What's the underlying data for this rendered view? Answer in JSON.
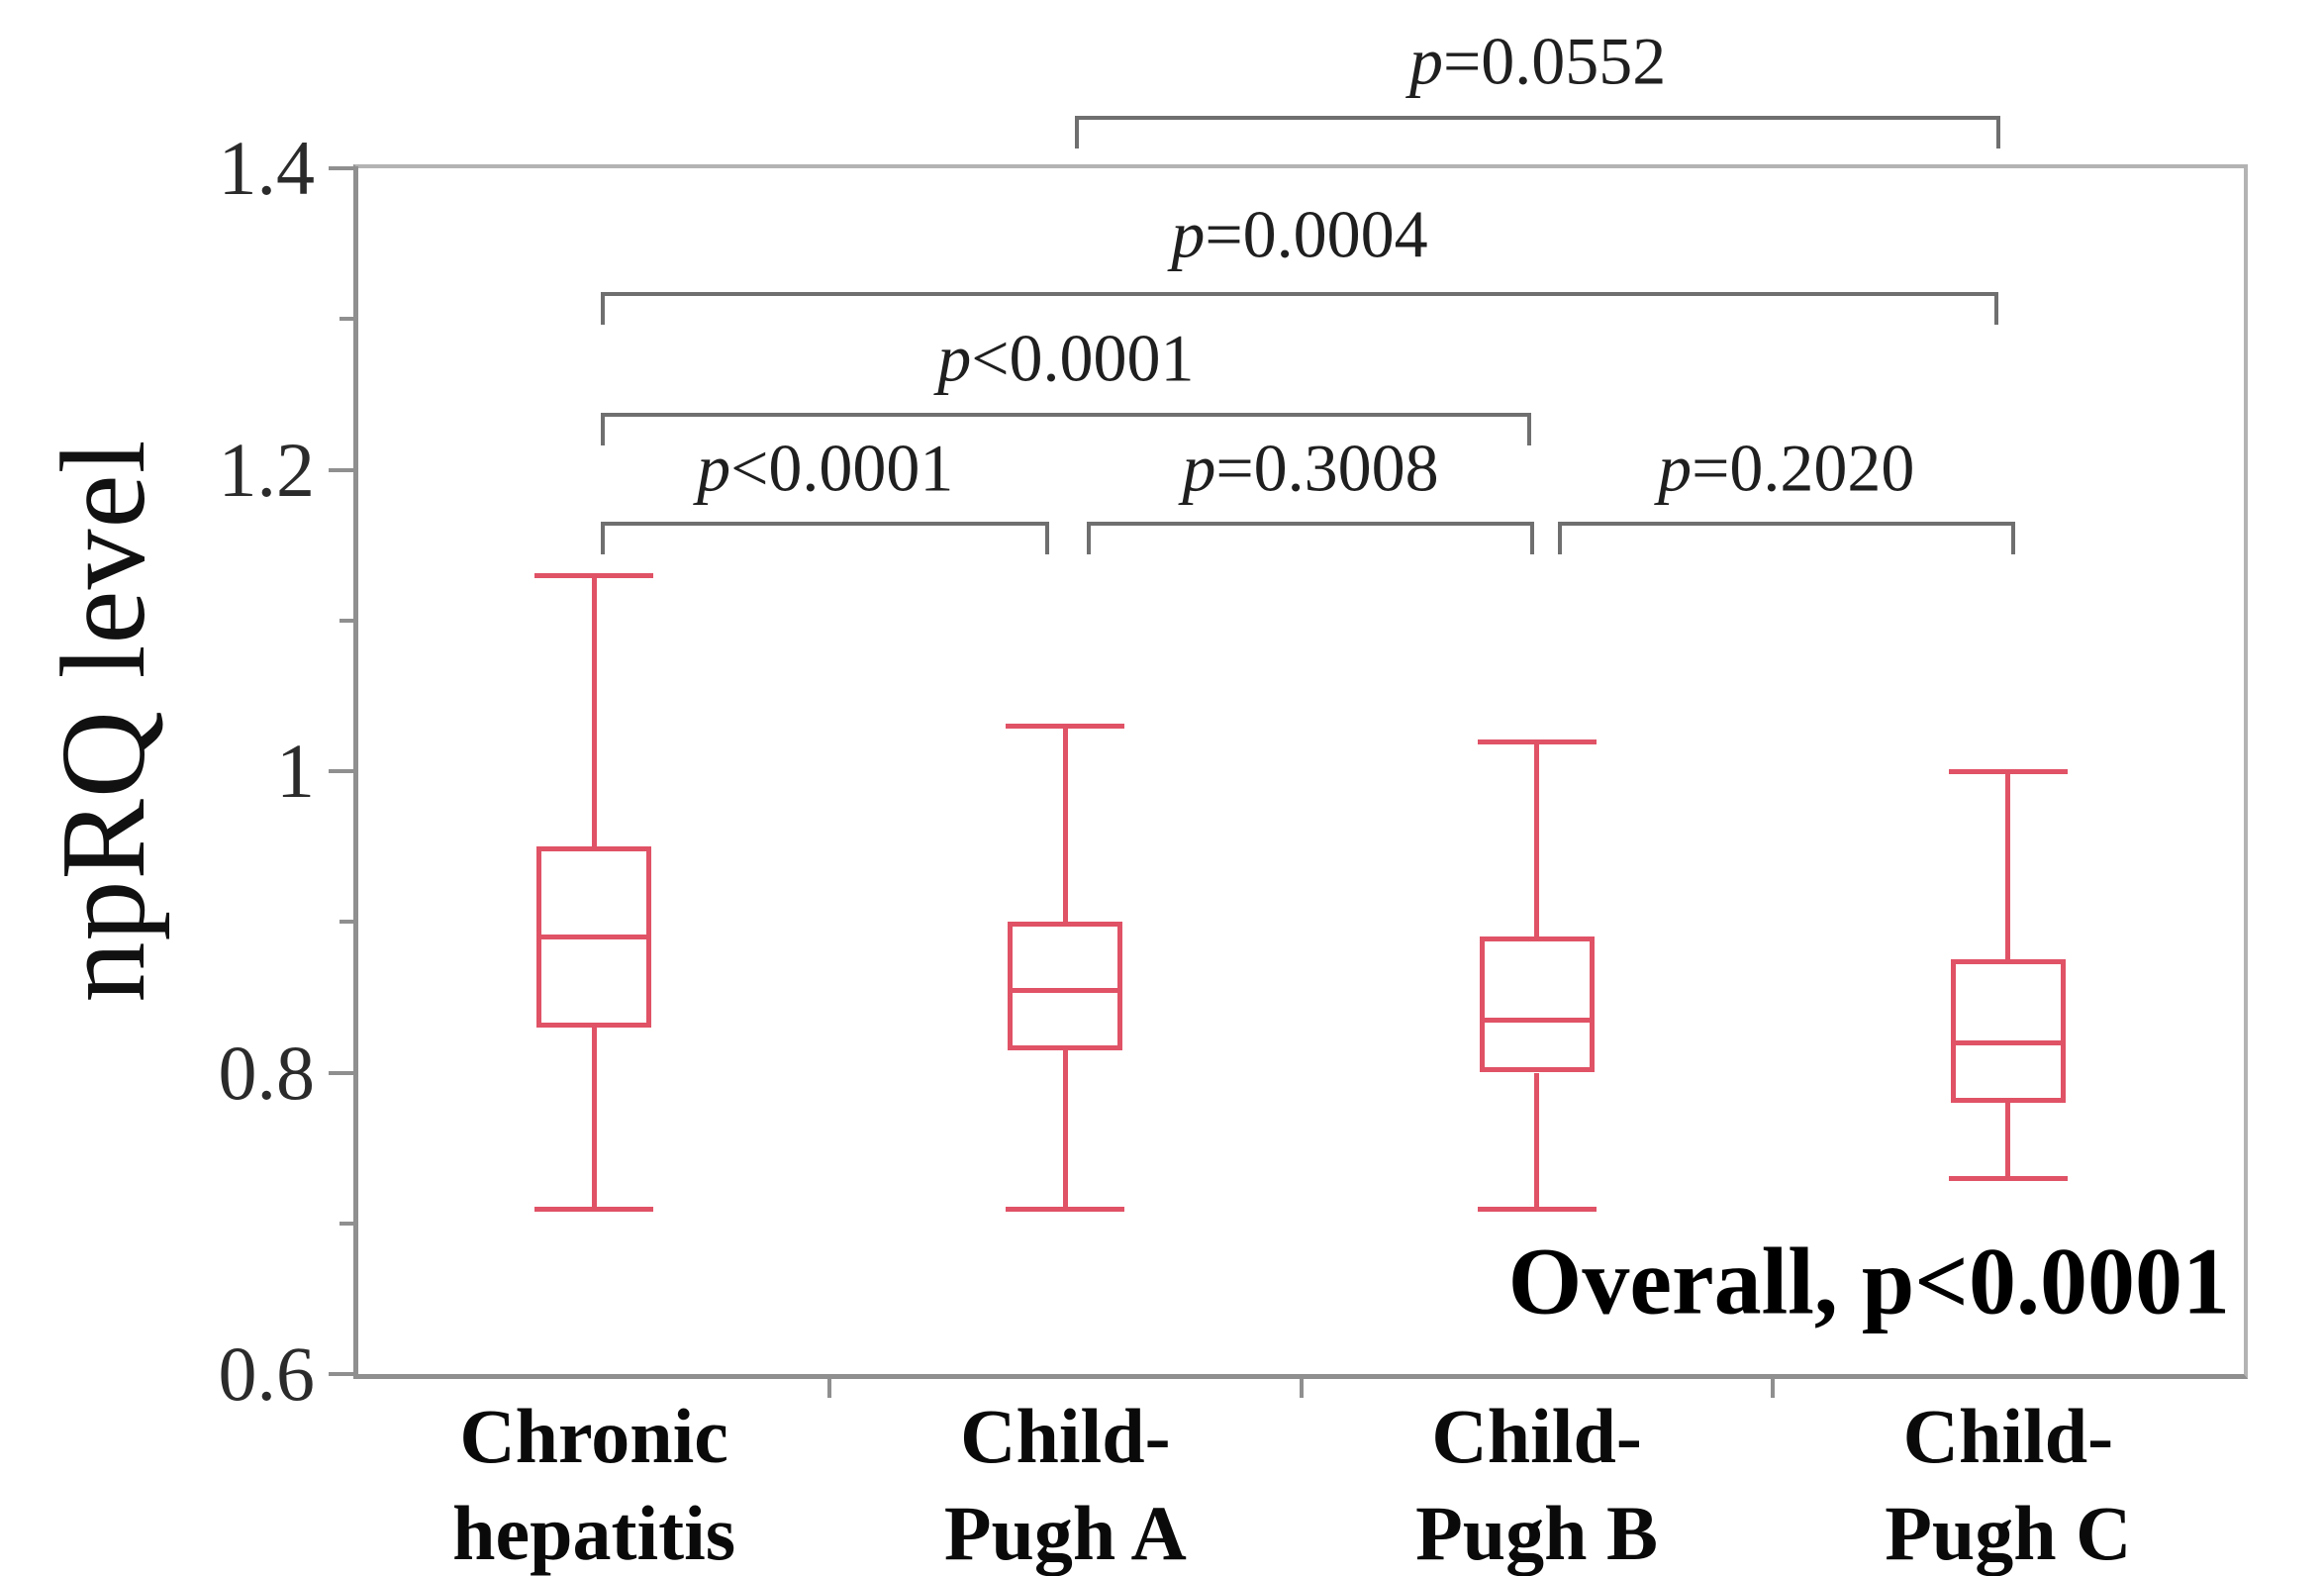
{
  "chart_data": {
    "type": "box",
    "title": "",
    "xlabel": "",
    "ylabel": "npRQ level",
    "ylim": [
      0.6,
      1.4
    ],
    "grid": false,
    "yticks": {
      "major": [
        {
          "v": 1.4,
          "label": "1.4"
        },
        {
          "v": 1.2,
          "label": "1.2"
        },
        {
          "v": 1.0,
          "label": "1"
        },
        {
          "v": 0.8,
          "label": "0.8"
        },
        {
          "v": 0.6,
          "label": "0.6"
        }
      ],
      "minor": [
        1.3,
        1.1,
        0.9,
        0.7
      ]
    },
    "groups": [
      {
        "label_lines": [
          "Chronic",
          "hepatitis"
        ],
        "whisker_low": 0.71,
        "q1": 0.83,
        "median": 0.89,
        "q3": 0.95,
        "whisker_high": 1.13
      },
      {
        "label_lines": [
          "Child-",
          "Pugh A"
        ],
        "whisker_low": 0.71,
        "q1": 0.815,
        "median": 0.855,
        "q3": 0.9,
        "whisker_high": 1.03
      },
      {
        "label_lines": [
          "Child-",
          "Pugh B"
        ],
        "whisker_low": 0.71,
        "q1": 0.8,
        "median": 0.835,
        "q3": 0.89,
        "whisker_high": 1.02
      },
      {
        "label_lines": [
          "Child-",
          "Pugh C"
        ],
        "whisker_low": 0.73,
        "q1": 0.78,
        "median": 0.82,
        "q3": 0.875,
        "whisker_high": 1.0
      }
    ],
    "comparisons": [
      {
        "text": "p=0.0552",
        "between": [
          1,
          3
        ],
        "tier": 0,
        "dx": [
          10,
          -8
        ]
      },
      {
        "text": "p=0.0004",
        "between": [
          0,
          3
        ],
        "tier": 1,
        "dx": [
          7,
          -10
        ]
      },
      {
        "text": "p<0.0001",
        "between": [
          0,
          2
        ],
        "tier": 2,
        "dx": [
          7,
          -6
        ]
      },
      {
        "text": "p<0.0001",
        "between": [
          0,
          1
        ],
        "tier": 3,
        "dx": [
          7,
          -16
        ]
      },
      {
        "text": "p=0.3008",
        "between": [
          1,
          2
        ],
        "tier": 3,
        "dx": [
          22,
          -3
        ]
      },
      {
        "text": "p=0.2020",
        "between": [
          2,
          3
        ],
        "tier": 3,
        "dx": [
          21,
          7
        ]
      }
    ],
    "annotation": "Overall, p<0.0001",
    "colors": {
      "box": "#e05266",
      "bracket": "#6f6f6f",
      "axis": "#8f8f8f",
      "border": "#b3b3b3",
      "text": "#111111"
    }
  }
}
